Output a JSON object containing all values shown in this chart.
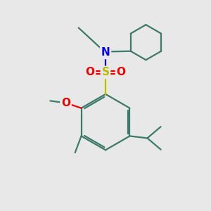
{
  "bg_color": "#e8e8e8",
  "bond_color": "#3d7a6a",
  "bond_width": 1.6,
  "atom_colors": {
    "N": "#0000ee",
    "S": "#bbbb00",
    "O": "#ee0000",
    "C": "#3d7a6a"
  }
}
